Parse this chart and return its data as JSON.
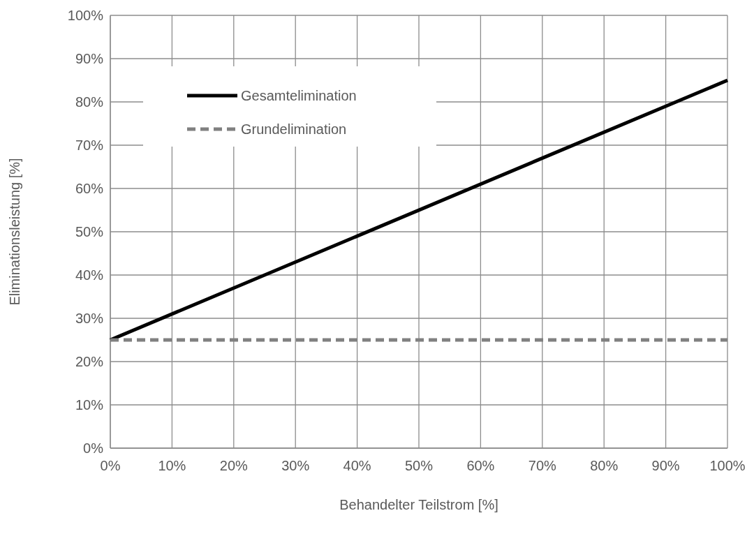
{
  "chart_data": {
    "type": "line",
    "xlabel": "Behandelter Teilstrom [%]",
    "ylabel": "Eliminationsleistung [%]",
    "series": [
      {
        "name": "Gesamtelimination",
        "color": "#000000",
        "values": [
          25,
          85
        ],
        "line_style": "solid"
      },
      {
        "name": "Grundelimination",
        "color": "#808080",
        "values": [
          25,
          25
        ],
        "line_style": "dashed"
      }
    ],
    "x": [
      0,
      100
    ],
    "xlim": [
      0,
      100
    ],
    "ylim": [
      0,
      100
    ],
    "xticks": [
      {
        "value": 0,
        "label": "0%"
      },
      {
        "value": 10,
        "label": "10%"
      },
      {
        "value": 20,
        "label": "20%"
      },
      {
        "value": 30,
        "label": "30%"
      },
      {
        "value": 40,
        "label": "40%"
      },
      {
        "value": 50,
        "label": "50%"
      },
      {
        "value": 60,
        "label": "60%"
      },
      {
        "value": 70,
        "label": "70%"
      },
      {
        "value": 80,
        "label": "80%"
      },
      {
        "value": 90,
        "label": "90%"
      },
      {
        "value": 100,
        "label": "100%"
      }
    ],
    "yticks": [
      {
        "value": 0,
        "label": "0%"
      },
      {
        "value": 10,
        "label": "10%"
      },
      {
        "value": 20,
        "label": "20%"
      },
      {
        "value": 30,
        "label": "30%"
      },
      {
        "value": 40,
        "label": "40%"
      },
      {
        "value": 50,
        "label": "50%"
      },
      {
        "value": 60,
        "label": "60%"
      },
      {
        "value": 70,
        "label": "70%"
      },
      {
        "value": 80,
        "label": "80%"
      },
      {
        "value": 90,
        "label": "90%"
      },
      {
        "value": 100,
        "label": "100%"
      }
    ],
    "grid": true,
    "legend": "top left",
    "marker": "none"
  }
}
